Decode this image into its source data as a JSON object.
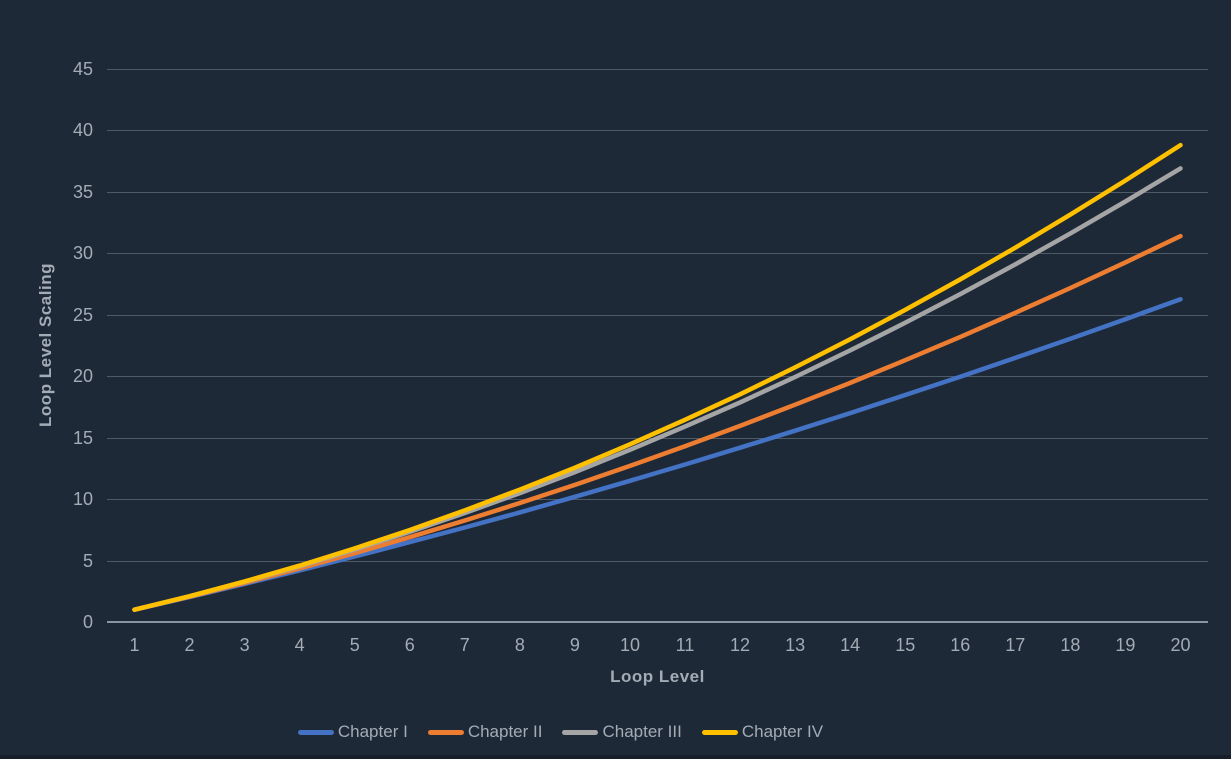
{
  "colors": {
    "background": "#1E2937",
    "gridline": "#4F5A69",
    "axis_line": "#8A94A3",
    "label_text": "#A3ABB5",
    "bottom_edge": "#151E29"
  },
  "chart_data": {
    "type": "line",
    "title": "",
    "xlabel": "Loop Level",
    "ylabel": "Loop Level Scaling",
    "x": [
      1,
      2,
      3,
      4,
      5,
      6,
      7,
      8,
      9,
      10,
      11,
      12,
      13,
      14,
      15,
      16,
      17,
      18,
      19,
      20
    ],
    "yticks": [
      0,
      5,
      10,
      15,
      20,
      25,
      30,
      35,
      40,
      45
    ],
    "ylim": [
      0,
      45
    ],
    "grid": true,
    "legend_position": "bottom",
    "series": [
      {
        "name": "Chapter I",
        "color": "#4472C4",
        "values": [
          1,
          2.03,
          3.1,
          4.2,
          5.33,
          6.5,
          7.69,
          8.92,
          10.19,
          11.49,
          12.82,
          14.18,
          15.57,
          17.0,
          18.47,
          19.96,
          21.49,
          23.05,
          24.64,
          26.27
        ]
      },
      {
        "name": "Chapter II",
        "color": "#ED7D31",
        "values": [
          1,
          2.06,
          3.18,
          4.36,
          5.6,
          6.9,
          8.26,
          9.68,
          11.16,
          12.7,
          14.3,
          15.96,
          17.68,
          19.46,
          21.3,
          23.2,
          25.16,
          27.18,
          29.26,
          31.4
        ]
      },
      {
        "name": "Chapter III",
        "color": "#A5A5A5",
        "values": [
          1,
          2.09,
          3.27,
          4.53,
          5.89,
          7.34,
          8.87,
          10.49,
          12.2,
          14.01,
          15.9,
          17.87,
          19.94,
          22.1,
          24.35,
          26.68,
          29.1,
          31.62,
          34.22,
          36.91
        ]
      },
      {
        "name": "Chapter IV",
        "color": "#FFC000",
        "values": [
          1,
          2.1,
          3.3,
          4.59,
          5.99,
          7.49,
          9.08,
          10.77,
          12.56,
          14.46,
          16.45,
          18.53,
          20.72,
          23.01,
          25.4,
          27.88,
          30.46,
          33.15,
          35.93,
          38.81
        ]
      }
    ]
  }
}
